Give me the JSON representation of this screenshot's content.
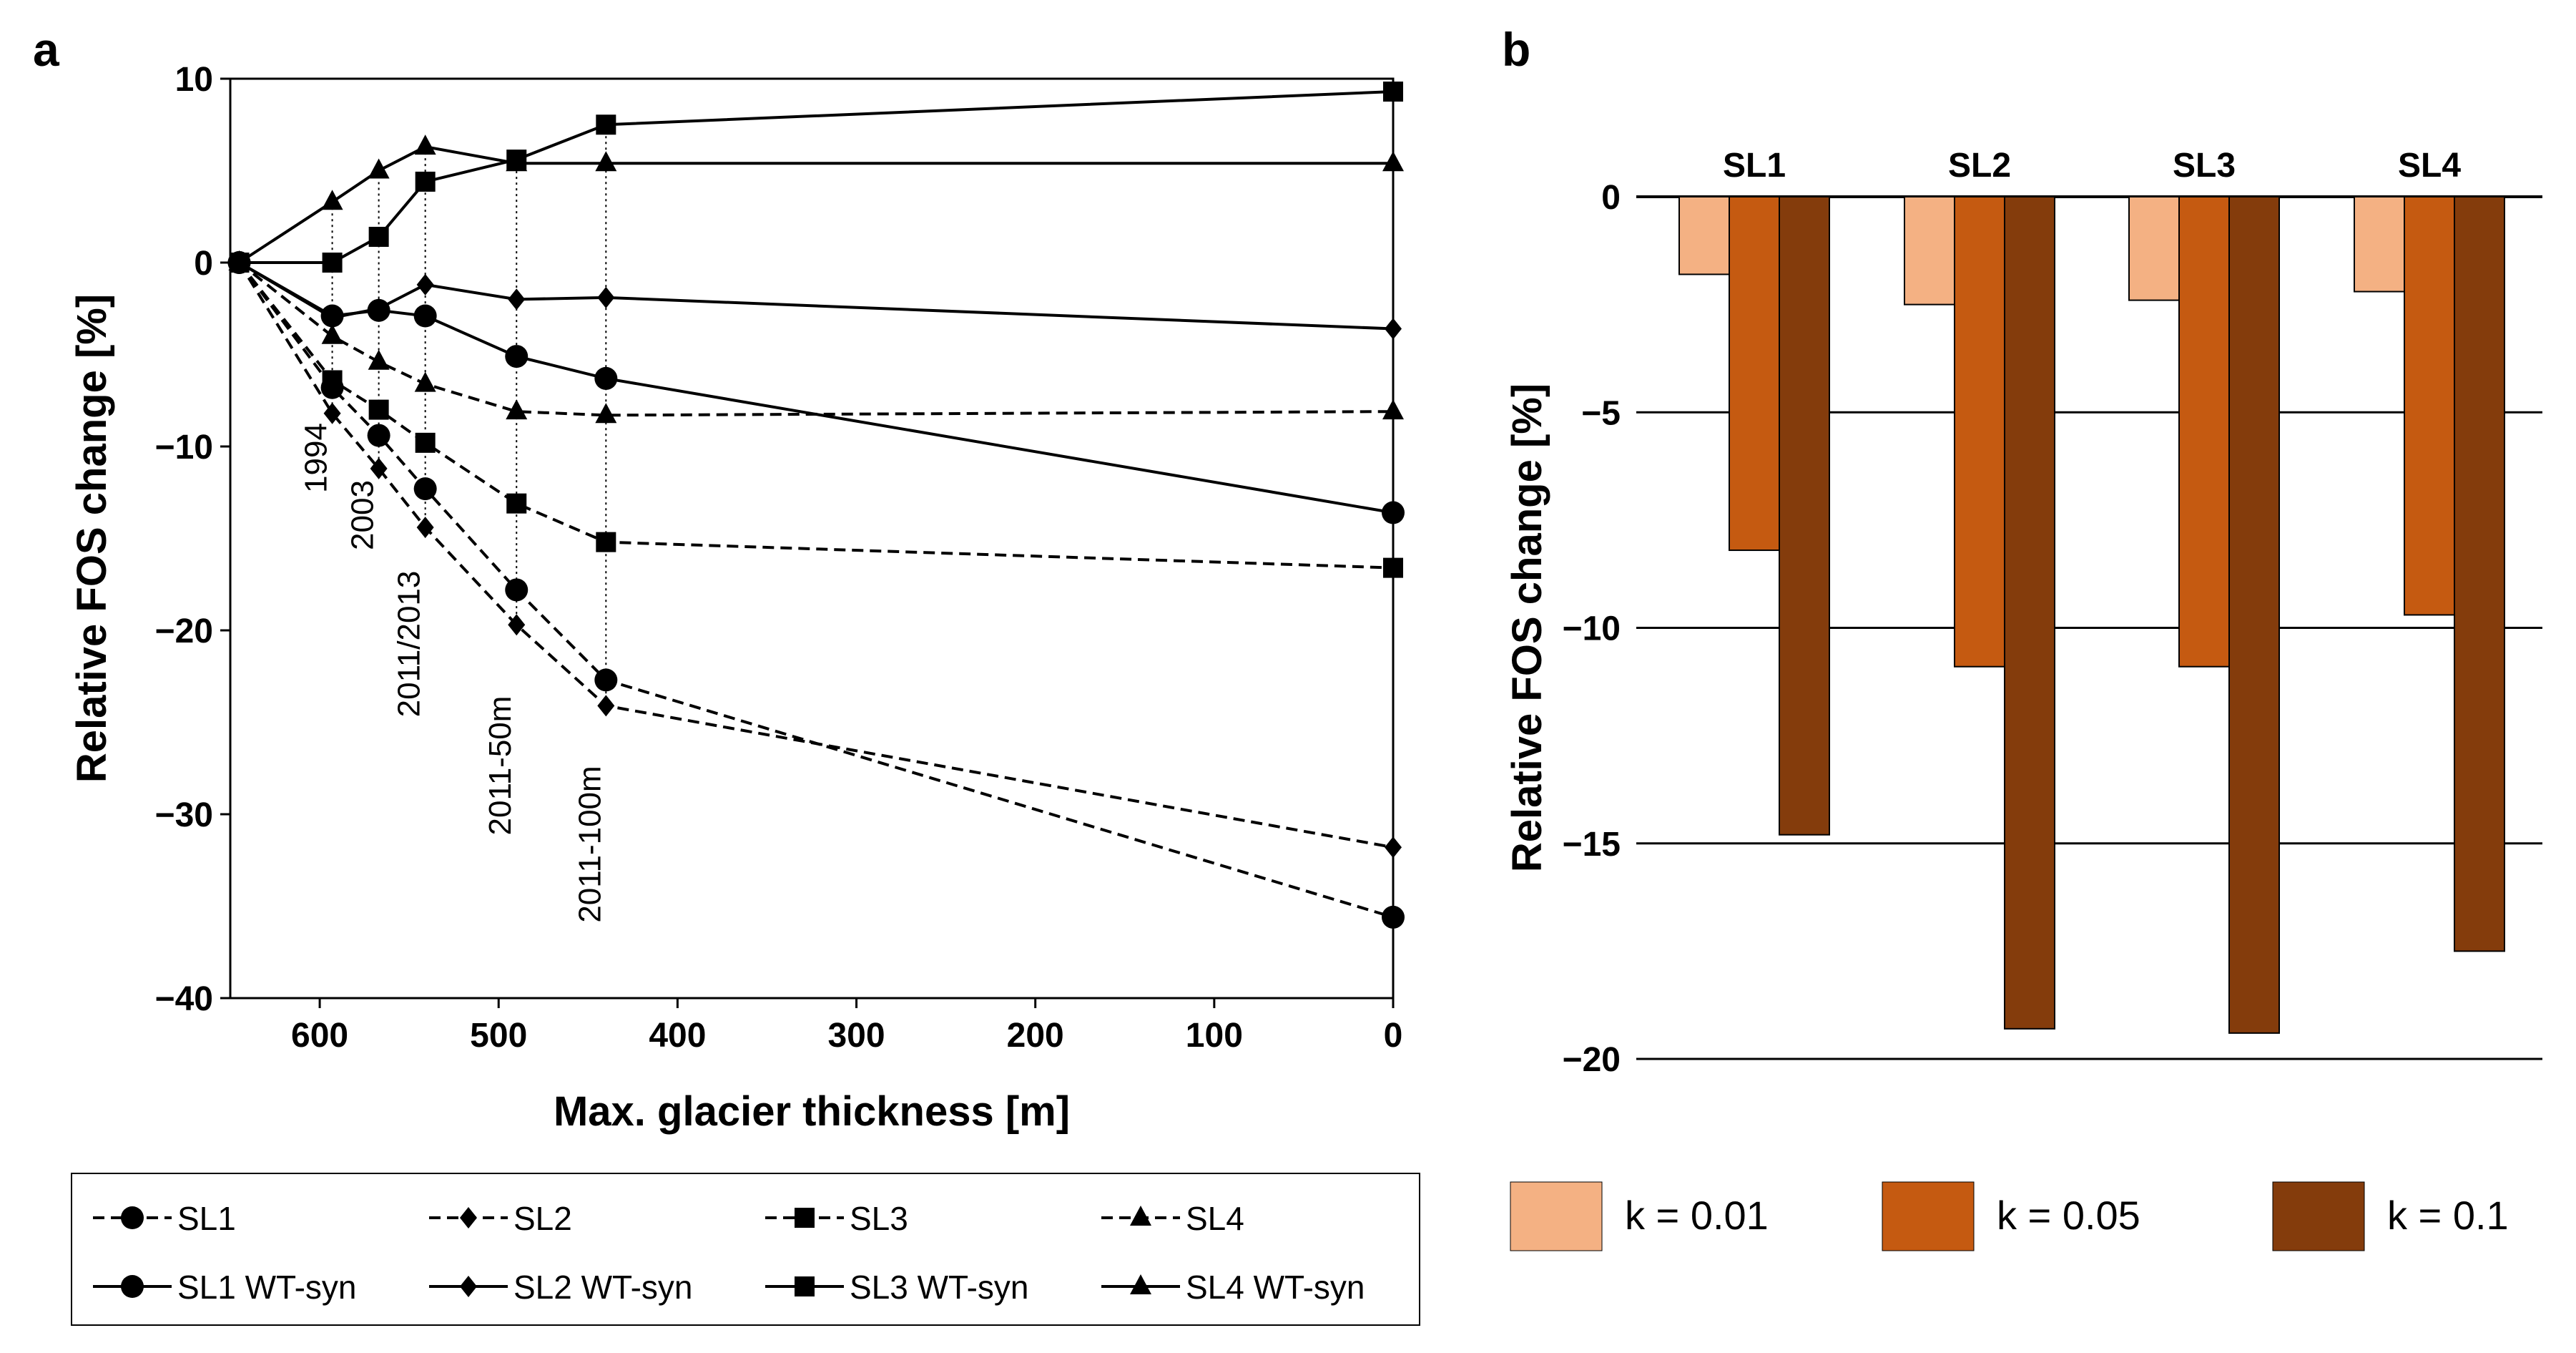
{
  "chart_data": [
    {
      "panel": "a",
      "type": "line",
      "xlabel": "Max. glacier thickness [m]",
      "ylabel": "Relative FOS change [%]",
      "xlim": [
        650,
        0
      ],
      "ylim": [
        -40,
        10
      ],
      "xticks": [
        600,
        500,
        400,
        300,
        200,
        100,
        0
      ],
      "yticks": [
        10,
        0,
        -10,
        -20,
        -30,
        -40
      ],
      "x": [
        645,
        593,
        567,
        541,
        490,
        440,
        0
      ],
      "event_labels": [
        {
          "x": 593,
          "label": "1994"
        },
        {
          "x": 567,
          "label": "2003"
        },
        {
          "x": 541,
          "label": "2011/2013"
        },
        {
          "x": 490,
          "label": "2011-50m"
        },
        {
          "x": 440,
          "label": "2011-100m"
        }
      ],
      "series": [
        {
          "name": "SL1",
          "style": "dashed",
          "marker": "circle",
          "values": [
            0,
            -6.8,
            -9.4,
            -12.3,
            -17.8,
            -22.7,
            -35.6
          ]
        },
        {
          "name": "SL2",
          "style": "dashed",
          "marker": "diamond",
          "values": [
            0,
            -8.2,
            -11.2,
            -14.4,
            -19.7,
            -24.1,
            -31.8
          ]
        },
        {
          "name": "SL3",
          "style": "dashed",
          "marker": "square",
          "values": [
            0,
            -6.4,
            -8.0,
            -9.8,
            -13.1,
            -15.2,
            -16.6
          ]
        },
        {
          "name": "SL4",
          "style": "dashed",
          "marker": "triangle",
          "values": [
            0,
            -4.0,
            -5.4,
            -6.6,
            -8.1,
            -8.3,
            -8.1
          ]
        },
        {
          "name": "SL1 WT-syn",
          "style": "solid",
          "marker": "circle",
          "values": [
            0,
            -2.9,
            -2.6,
            -2.9,
            -5.1,
            -6.3,
            -13.6
          ]
        },
        {
          "name": "SL2 WT-syn",
          "style": "solid",
          "marker": "diamond",
          "values": [
            0,
            -3.0,
            -2.5,
            -1.2,
            -2.0,
            -1.9,
            -3.6
          ]
        },
        {
          "name": "SL3 WT-syn",
          "style": "solid",
          "marker": "square",
          "values": [
            0,
            0.0,
            1.4,
            4.4,
            5.6,
            7.5,
            9.3
          ]
        },
        {
          "name": "SL4 WT-syn",
          "style": "solid",
          "marker": "triangle",
          "values": [
            0,
            3.3,
            5.0,
            6.3,
            5.4,
            5.4,
            5.4
          ]
        }
      ]
    },
    {
      "panel": "b",
      "type": "bar",
      "ylabel": "Relative FOS change [%]",
      "ylim": [
        -20,
        0
      ],
      "yticks": [
        0,
        -5,
        -10,
        -15,
        -20
      ],
      "categories": [
        "SL1",
        "SL2",
        "SL3",
        "SL4"
      ],
      "series": [
        {
          "name": "k = 0.01",
          "color": "#F4B183",
          "values": [
            -1.8,
            -2.5,
            -2.4,
            -2.2
          ]
        },
        {
          "name": "k = 0.05",
          "color": "#C55A11",
          "values": [
            -8.2,
            -10.9,
            -10.9,
            -9.7
          ]
        },
        {
          "name": "k = 0.1",
          "color": "#843C0C",
          "values": [
            -14.8,
            -19.3,
            -19.4,
            -17.5
          ]
        }
      ]
    }
  ]
}
